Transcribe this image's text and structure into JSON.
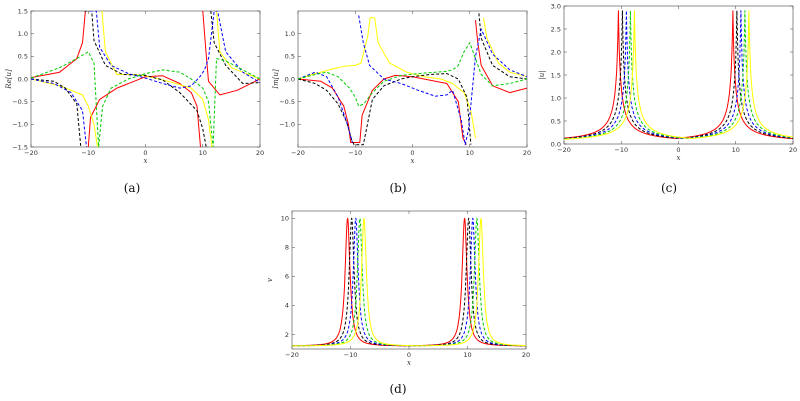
{
  "figure": {
    "captions": [
      "(a)",
      "(b)",
      "(c)",
      "(d)"
    ]
  },
  "chart_data": [
    {
      "type": "line",
      "panel": "a",
      "xlabel": "x",
      "ylabel": "Re[u]",
      "xlim": [
        -20,
        20
      ],
      "ylim": [
        -1.5,
        1.5
      ],
      "xticks": [
        -20,
        -10,
        0,
        10,
        20
      ],
      "yticks": [
        -1.5,
        -1.0,
        -0.5,
        0.0,
        0.5,
        1.0,
        1.5
      ],
      "grid": false,
      "series": [
        {
          "color": "#ff0000",
          "dash": false,
          "x": [
            -20,
            -15,
            -12,
            -11,
            -10.5,
            -10,
            -9.6,
            -8,
            -5,
            -2,
            0,
            3,
            6,
            8,
            9,
            9.6,
            10,
            10.5,
            11,
            13,
            16,
            20
          ],
          "y": [
            0.03,
            0.15,
            0.45,
            0.8,
            1.5,
            -1.5,
            -0.85,
            -0.45,
            -0.2,
            -0.05,
            0.05,
            0.07,
            -0.1,
            -0.3,
            -0.6,
            -1.5,
            1.5,
            0.7,
            -0.05,
            -0.35,
            -0.25,
            0.0
          ]
        },
        {
          "color": "#ffff00",
          "dash": false,
          "x": [
            -20,
            -15,
            -11,
            -10,
            -9,
            -8.4,
            -7.6,
            -7,
            -5,
            -2,
            0,
            4,
            8,
            10,
            11,
            11.6,
            12.4,
            13,
            15,
            20
          ],
          "y": [
            0.0,
            -0.15,
            -0.35,
            -0.6,
            -1.0,
            -1.5,
            1.5,
            0.6,
            0.1,
            0.1,
            0.07,
            -0.05,
            -0.2,
            -0.45,
            -0.9,
            -1.5,
            1.5,
            0.6,
            0.25,
            0.0
          ]
        },
        {
          "color": "#000000",
          "dash": true,
          "x": [
            -20,
            -16,
            -14,
            -12,
            -11.3,
            -10.7,
            -9.4,
            -9,
            -7,
            -4,
            0,
            3,
            6,
            9,
            10,
            10.6,
            11.4,
            12,
            14,
            17,
            20
          ],
          "y": [
            0.0,
            -0.05,
            -0.2,
            -0.55,
            -1.5,
            1.5,
            1.5,
            0.85,
            0.3,
            0.1,
            0.08,
            -0.02,
            -0.3,
            -0.7,
            -1.1,
            -1.5,
            1.5,
            0.8,
            0.3,
            -0.1,
            -0.08
          ]
        },
        {
          "color": "#0000ff",
          "dash": true,
          "x": [
            -20,
            -16,
            -13,
            -11,
            -10.3,
            -9.7,
            -8.6,
            -8,
            -6,
            -3,
            0,
            3,
            6,
            8,
            9.5,
            10.3,
            11,
            12,
            12.6,
            14,
            17,
            20
          ],
          "y": [
            0.0,
            -0.1,
            -0.3,
            -0.7,
            -1.5,
            1.5,
            1.5,
            0.7,
            0.3,
            0.12,
            0.02,
            -0.1,
            -0.2,
            -0.15,
            0.05,
            0.2,
            0.45,
            1.5,
            1.5,
            0.6,
            0.15,
            -0.08
          ]
        },
        {
          "color": "#00cc00",
          "dash": true,
          "x": [
            -20,
            -15,
            -12,
            -10,
            -9,
            -8.2,
            -7.5,
            -6,
            -3,
            0,
            3,
            6,
            8,
            10,
            11,
            11.8,
            12.4,
            14,
            17,
            20
          ],
          "y": [
            0.02,
            0.25,
            0.45,
            0.6,
            0.35,
            -1.5,
            -0.6,
            -0.2,
            0.0,
            0.12,
            0.2,
            0.15,
            0.0,
            -0.2,
            -0.5,
            -1.5,
            0.45,
            0.4,
            0.2,
            0.0
          ]
        }
      ]
    },
    {
      "type": "line",
      "panel": "b",
      "xlabel": "x",
      "ylabel": "Im[u]",
      "xlim": [
        -20,
        20
      ],
      "ylim": [
        -1.5,
        1.5
      ],
      "xticks": [
        -20,
        -10,
        0,
        10,
        20
      ],
      "yticks": [
        -1.0,
        -0.5,
        0.0,
        0.5,
        1.0
      ],
      "grid": false,
      "series": [
        {
          "color": "#ff0000",
          "dash": false,
          "x": [
            -20,
            -16,
            -14,
            -12,
            -11.2,
            -10.8,
            -9.2,
            -8.8,
            -7,
            -5,
            -3,
            0,
            2,
            4,
            6,
            8,
            8.8,
            9.4,
            11,
            11.4,
            12,
            14,
            17,
            20
          ],
          "y": [
            0.0,
            -0.05,
            -0.2,
            -0.6,
            -1.0,
            -1.4,
            -1.4,
            -0.8,
            -0.25,
            0.0,
            0.08,
            0.05,
            0.0,
            -0.05,
            -0.1,
            -0.5,
            -1.3,
            -1.45,
            1.3,
            0.8,
            0.3,
            -0.15,
            -0.3,
            -0.2
          ]
        },
        {
          "color": "#ffff00",
          "dash": false,
          "x": [
            -20,
            -17,
            -14,
            -12,
            -10,
            -9,
            -7.8,
            -7.4,
            -6.6,
            -6,
            -4,
            -1,
            2,
            5,
            7,
            9,
            10.2,
            11,
            12.4,
            13,
            15,
            17,
            20
          ],
          "y": [
            0.0,
            0.12,
            0.22,
            0.28,
            0.3,
            0.35,
            0.95,
            1.35,
            1.35,
            0.8,
            0.35,
            0.15,
            0.05,
            0.0,
            -0.1,
            -0.3,
            -0.7,
            -1.3,
            1.35,
            0.9,
            0.35,
            0.15,
            0.05
          ]
        },
        {
          "color": "#000000",
          "dash": true,
          "x": [
            -20,
            -17,
            -15,
            -13,
            -11.5,
            -10.6,
            -10.2,
            -8.6,
            -8.2,
            -7,
            -5,
            -2,
            0,
            3,
            6,
            8,
            9.5,
            10.2,
            11.6,
            12,
            14,
            17,
            20
          ],
          "y": [
            0.0,
            -0.1,
            -0.25,
            -0.55,
            -0.95,
            -1.35,
            -1.45,
            -1.45,
            -1.2,
            -0.45,
            -0.15,
            0.0,
            0.05,
            0.1,
            0.12,
            0.0,
            -0.4,
            -1.45,
            1.45,
            0.9,
            0.3,
            0.05,
            0.0
          ]
        },
        {
          "color": "#0000ff",
          "dash": true,
          "x": [
            -20,
            -17,
            -15,
            -13,
            -11.5,
            -10.5,
            -9.4,
            -8.6,
            -7.5,
            -5,
            -2,
            1,
            4,
            6,
            7,
            8.5,
            9.2,
            9.8,
            11,
            12,
            14,
            17,
            20
          ],
          "y": [
            0.0,
            0.15,
            0.05,
            -0.4,
            -0.95,
            -1.4,
            1.4,
            0.8,
            0.3,
            0.0,
            -0.1,
            -0.25,
            -0.38,
            -0.35,
            -0.25,
            -0.9,
            -1.45,
            -1.1,
            0.5,
            1.1,
            0.55,
            0.2,
            0.05
          ]
        },
        {
          "color": "#00cc00",
          "dash": true,
          "x": [
            -20,
            -17,
            -15,
            -13,
            -11,
            -10,
            -9.4,
            -8.5,
            -7,
            -5,
            -2,
            1,
            4,
            6,
            7,
            8,
            9,
            10,
            11,
            12,
            14,
            17,
            20
          ],
          "y": [
            0.0,
            0.1,
            0.15,
            0.05,
            -0.2,
            -0.4,
            -0.6,
            -0.55,
            -0.3,
            -0.05,
            0.08,
            0.12,
            0.15,
            0.17,
            0.2,
            0.3,
            0.6,
            0.8,
            0.45,
            0.1,
            -0.15,
            -0.1,
            0.0
          ]
        }
      ]
    },
    {
      "type": "line",
      "panel": "c",
      "xlabel": "x",
      "ylabel": "|u|",
      "xlim": [
        -20,
        20
      ],
      "ylim": [
        0,
        3
      ],
      "xticks": [
        -20,
        -10,
        0,
        10,
        20
      ],
      "yticks": [
        0.0,
        0.5,
        1.0,
        1.5,
        2.0,
        2.5,
        3.0
      ],
      "grid": false,
      "series": [
        {
          "color": "#ff0000",
          "dash": false,
          "center": -10.5,
          "center2": 9.5
        },
        {
          "color": "#000000",
          "dash": true,
          "center": -9.8,
          "center2": 10.2
        },
        {
          "color": "#0000ff",
          "dash": true,
          "center": -9.1,
          "center2": 10.9
        },
        {
          "color": "#00cc00",
          "dash": true,
          "center": -8.4,
          "center2": 11.6
        },
        {
          "color": "#ffff00",
          "dash": false,
          "center": -7.7,
          "center2": 12.3
        }
      ]
    },
    {
      "type": "line",
      "panel": "d",
      "xlabel": "x",
      "ylabel": "v",
      "xlim": [
        -20,
        20
      ],
      "ylim": [
        1,
        10.5
      ],
      "xticks": [
        -20,
        -10,
        0,
        10,
        20
      ],
      "yticks": [
        2,
        4,
        6,
        8,
        10
      ],
      "grid": false,
      "series": [
        {
          "color": "#ff0000",
          "dash": false,
          "center": -10.5,
          "center2": 9.5
        },
        {
          "color": "#000000",
          "dash": true,
          "center": -9.8,
          "center2": 10.2
        },
        {
          "color": "#0000ff",
          "dash": true,
          "center": -9.1,
          "center2": 10.9
        },
        {
          "color": "#00cc00",
          "dash": true,
          "center": -8.4,
          "center2": 11.6
        },
        {
          "color": "#ffff00",
          "dash": false,
          "center": -7.7,
          "center2": 12.3
        }
      ]
    }
  ]
}
